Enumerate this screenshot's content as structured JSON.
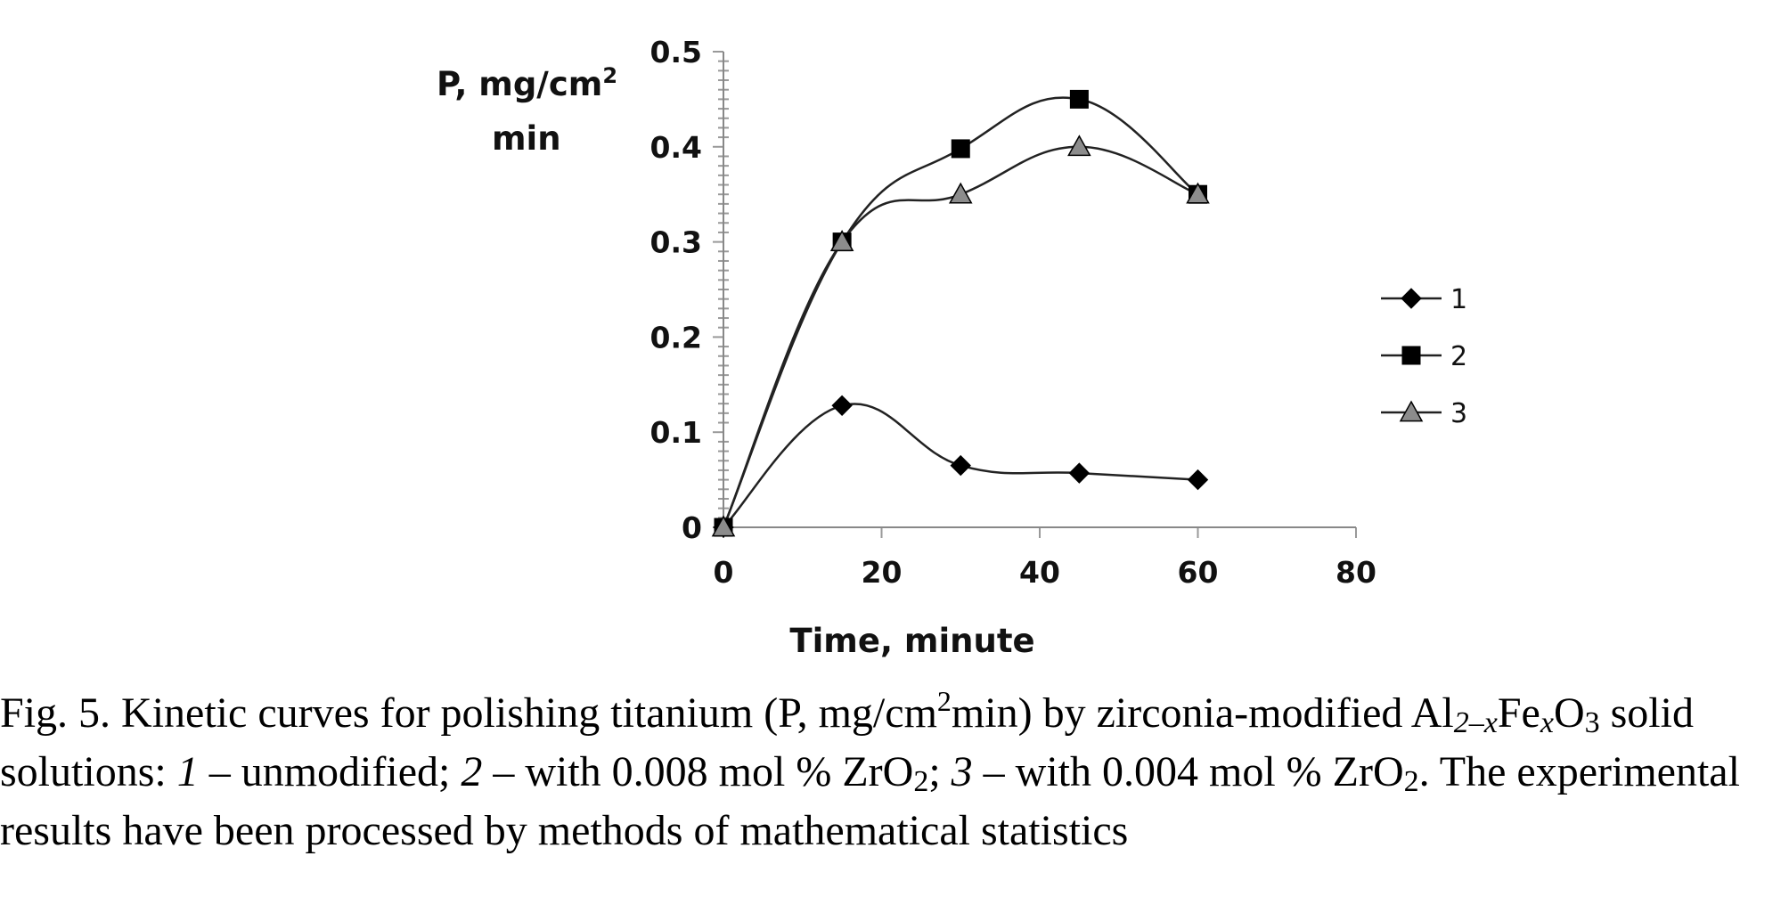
{
  "chart_data": {
    "type": "line",
    "ylabel": {
      "line1": "P, mg/cm",
      "sup": "2",
      "line2": "min"
    },
    "xlabel": "Time, minute",
    "xlim": [
      0,
      80
    ],
    "ylim": [
      0,
      0.5
    ],
    "x_ticks": [
      "0",
      "20",
      "40",
      "60",
      "80"
    ],
    "y_ticks": [
      "0",
      "0.1",
      "0.2",
      "0.3",
      "0.4",
      "0.5"
    ],
    "legend_position": "right",
    "series": [
      {
        "name": "1",
        "marker": "diamond",
        "x": [
          0,
          15,
          30,
          45,
          60
        ],
        "y": [
          0,
          0.128,
          0.065,
          0.057,
          0.05
        ]
      },
      {
        "name": "2",
        "marker": "square",
        "x": [
          0,
          15,
          30,
          45,
          60
        ],
        "y": [
          0,
          0.3,
          0.398,
          0.45,
          0.35
        ]
      },
      {
        "name": "3",
        "marker": "triangle",
        "x": [
          0,
          15,
          30,
          45,
          60
        ],
        "y": [
          0,
          0.3,
          0.35,
          0.4,
          0.35
        ]
      }
    ],
    "colors": {
      "line": "#222222",
      "marker_1": "#000000",
      "marker_2": "#000000",
      "marker_3": "#8c8c8c"
    }
  },
  "caption": {
    "p1": "Fig. 5. Kinetic curves for polishing titanium (P, mg/cm",
    "p1_sup": "2",
    "p2": "min) by zirconia-modified Al",
    "p2_sub": "2–x",
    "p3": "Fe",
    "p3_sub": "x",
    "p4": "O",
    "p4_sub": "3",
    "p5": " solid solutions: ",
    "n1": "1",
    "p6": " – unmodified; ",
    "n2": "2",
    "p7": " – with 0.008 mol % ZrO",
    "p7_sub": "2",
    "p8": "; ",
    "n3": "3",
    "p9": " – with 0.004 mol % ZrO",
    "p9_sub": "2",
    "p10": ". The experimental results have been processed by methods of mathematical statistics"
  }
}
